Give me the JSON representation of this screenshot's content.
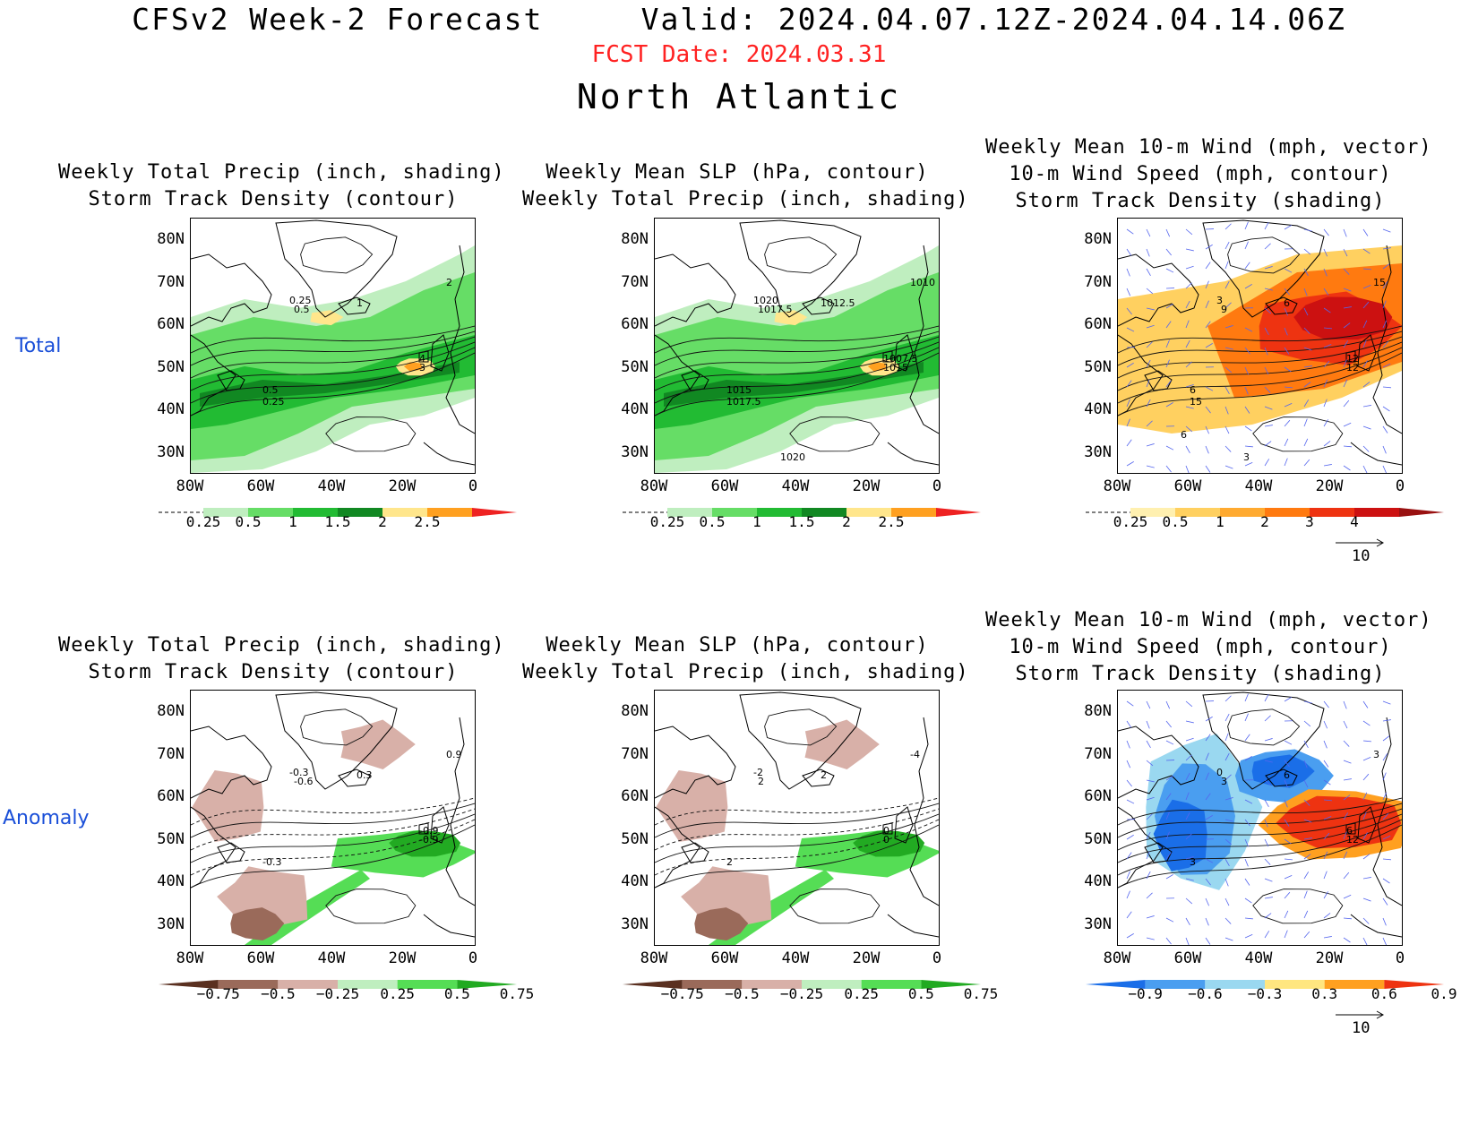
{
  "header": {
    "title": "CFSv2 Week-2 Forecast     Valid: 2024.04.07.12Z-2024.04.14.06Z",
    "fcst_date": "FCST Date: 2024.03.31",
    "region": "North Atlantic"
  },
  "row_labels": {
    "total": "Total",
    "anomaly": "Anomaly"
  },
  "axes": {
    "lat_labels": [
      "80N",
      "70N",
      "60N",
      "50N",
      "40N",
      "30N"
    ],
    "lon_labels": [
      "80W",
      "60W",
      "40W",
      "20W",
      "0"
    ]
  },
  "panels": [
    {
      "title_lines": [
        "Weekly Total Precip (inch, shading)",
        "Storm Track Density (contour)"
      ],
      "colorbar_ticks": [
        "0.25",
        "0.5",
        "1",
        "1.5",
        "2",
        "2.5"
      ],
      "contour_labels": [
        "0.25",
        "0.5",
        "1",
        "2",
        "4",
        "3",
        "0.5",
        "0.25"
      ],
      "colors": [
        "#bfeebf",
        "#66dd66",
        "#22bb33",
        "#118822",
        "#ffe68c",
        "#ffa020",
        "#ee2222"
      ]
    },
    {
      "title_lines": [
        "Weekly Mean SLP (hPa, contour)",
        "Weekly Total Precip (inch, shading)"
      ],
      "colorbar_ticks": [
        "0.25",
        "0.5",
        "1",
        "1.5",
        "2",
        "2.5"
      ],
      "contour_labels": [
        "1020",
        "1017.5",
        "1012.5",
        "1010",
        "1007.5",
        "1015",
        "1015",
        "1017.5",
        "1020"
      ],
      "colors": [
        "#bfeebf",
        "#66dd66",
        "#22bb33",
        "#118822",
        "#ffe68c",
        "#ffa020",
        "#ee2222"
      ]
    },
    {
      "title_lines": [
        "Weekly Mean 10-m Wind (mph, vector)",
        "10-m Wind Speed (mph, contour)",
        "Storm Track Density (shading)"
      ],
      "colorbar_ticks": [
        "0.25",
        "0.5",
        "1",
        "2",
        "3",
        "4"
      ],
      "contour_labels": [
        "3",
        "9",
        "6",
        "15",
        "12",
        "12",
        "6",
        "15",
        "3",
        "6"
      ],
      "vector_ref": "10",
      "colors": [
        "#fff0b0",
        "#ffd060",
        "#ffaa30",
        "#ff7a10",
        "#ee3311",
        "#cc1111",
        "#991111"
      ]
    },
    {
      "title_lines": [
        "Weekly Total Precip (inch, shading)",
        "Storm Track Density (contour)"
      ],
      "colorbar_ticks": [
        "−0.75",
        "−0.5",
        "−0.25",
        "0.25",
        "0.5",
        "0.75"
      ],
      "contour_labels": [
        "-0.3",
        "-0.6",
        "0.3",
        "0.9",
        "-0.9",
        "-0.9",
        "-0.3"
      ],
      "colors": [
        "#5a3020",
        "#9a6a5a",
        "#d8b0a8",
        "#bfeebf",
        "#55dd55",
        "#22aa22"
      ]
    },
    {
      "title_lines": [
        "Weekly Mean SLP (hPa, contour)",
        "Weekly Total Precip (inch, shading)"
      ],
      "colorbar_ticks": [
        "−0.75",
        "−0.5",
        "−0.25",
        "0.25",
        "0.5",
        "0.75"
      ],
      "contour_labels": [
        "-2",
        "2",
        "2",
        "-4",
        "0",
        "0",
        "2"
      ],
      "colors": [
        "#5a3020",
        "#9a6a5a",
        "#d8b0a8",
        "#bfeebf",
        "#55dd55",
        "#22aa22"
      ]
    },
    {
      "title_lines": [
        "Weekly Mean 10-m Wind (mph, vector)",
        "10-m Wind Speed (mph, contour)",
        "Storm Track Density (shading)"
      ],
      "colorbar_ticks": [
        "−0.9",
        "−0.6",
        "−0.3",
        "0.3",
        "0.6",
        "0.9"
      ],
      "contour_labels": [
        "0",
        "3",
        "6",
        "3",
        "6",
        "12",
        "3"
      ],
      "vector_ref": "10",
      "colors": [
        "#1a6ee8",
        "#4a9ef0",
        "#9ad8f0",
        "#ffe680",
        "#ffa020",
        "#ee3311"
      ]
    }
  ]
}
